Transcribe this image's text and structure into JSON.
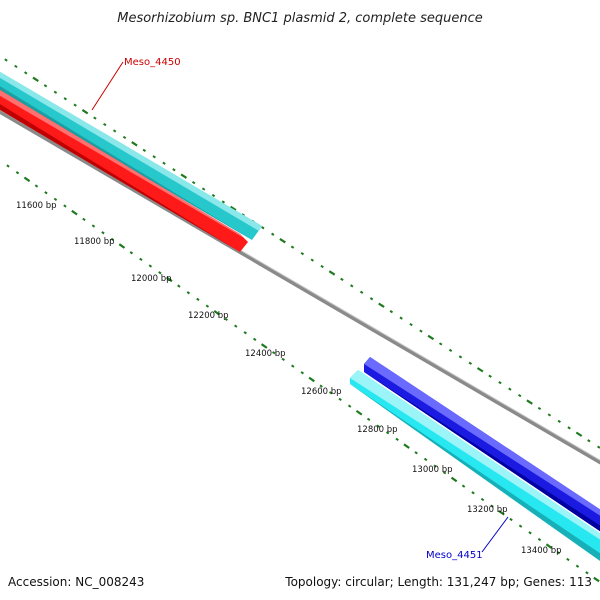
{
  "title": "Mesorhizobium sp. BNC1 plasmid 2, complete sequence",
  "footer": {
    "accession": "Accession: NC_008243",
    "summary": "Topology: circular; Length: 131,247 bp; Genes: 113"
  },
  "colors": {
    "backbone": "#8a8a8a",
    "forward_gene": "#27c8cc",
    "reverse_gene_red": "#ff1a1a",
    "reverse_gene_blue": "#1a1ae0",
    "tick": "#1f7a1f",
    "label_red": "#cc0000",
    "label_blue": "#0000cc"
  },
  "scale": {
    "labels": [
      "11600 bp",
      "11800 bp",
      "12000 bp",
      "12200 bp",
      "12400 bp",
      "12600 bp",
      "12800 bp",
      "13000 bp",
      "13200 bp",
      "13400 bp"
    ]
  },
  "genes": [
    {
      "name": "Meso_4450",
      "strand": "forward"
    },
    {
      "name": "Meso_4451",
      "strand": "forward"
    }
  ]
}
